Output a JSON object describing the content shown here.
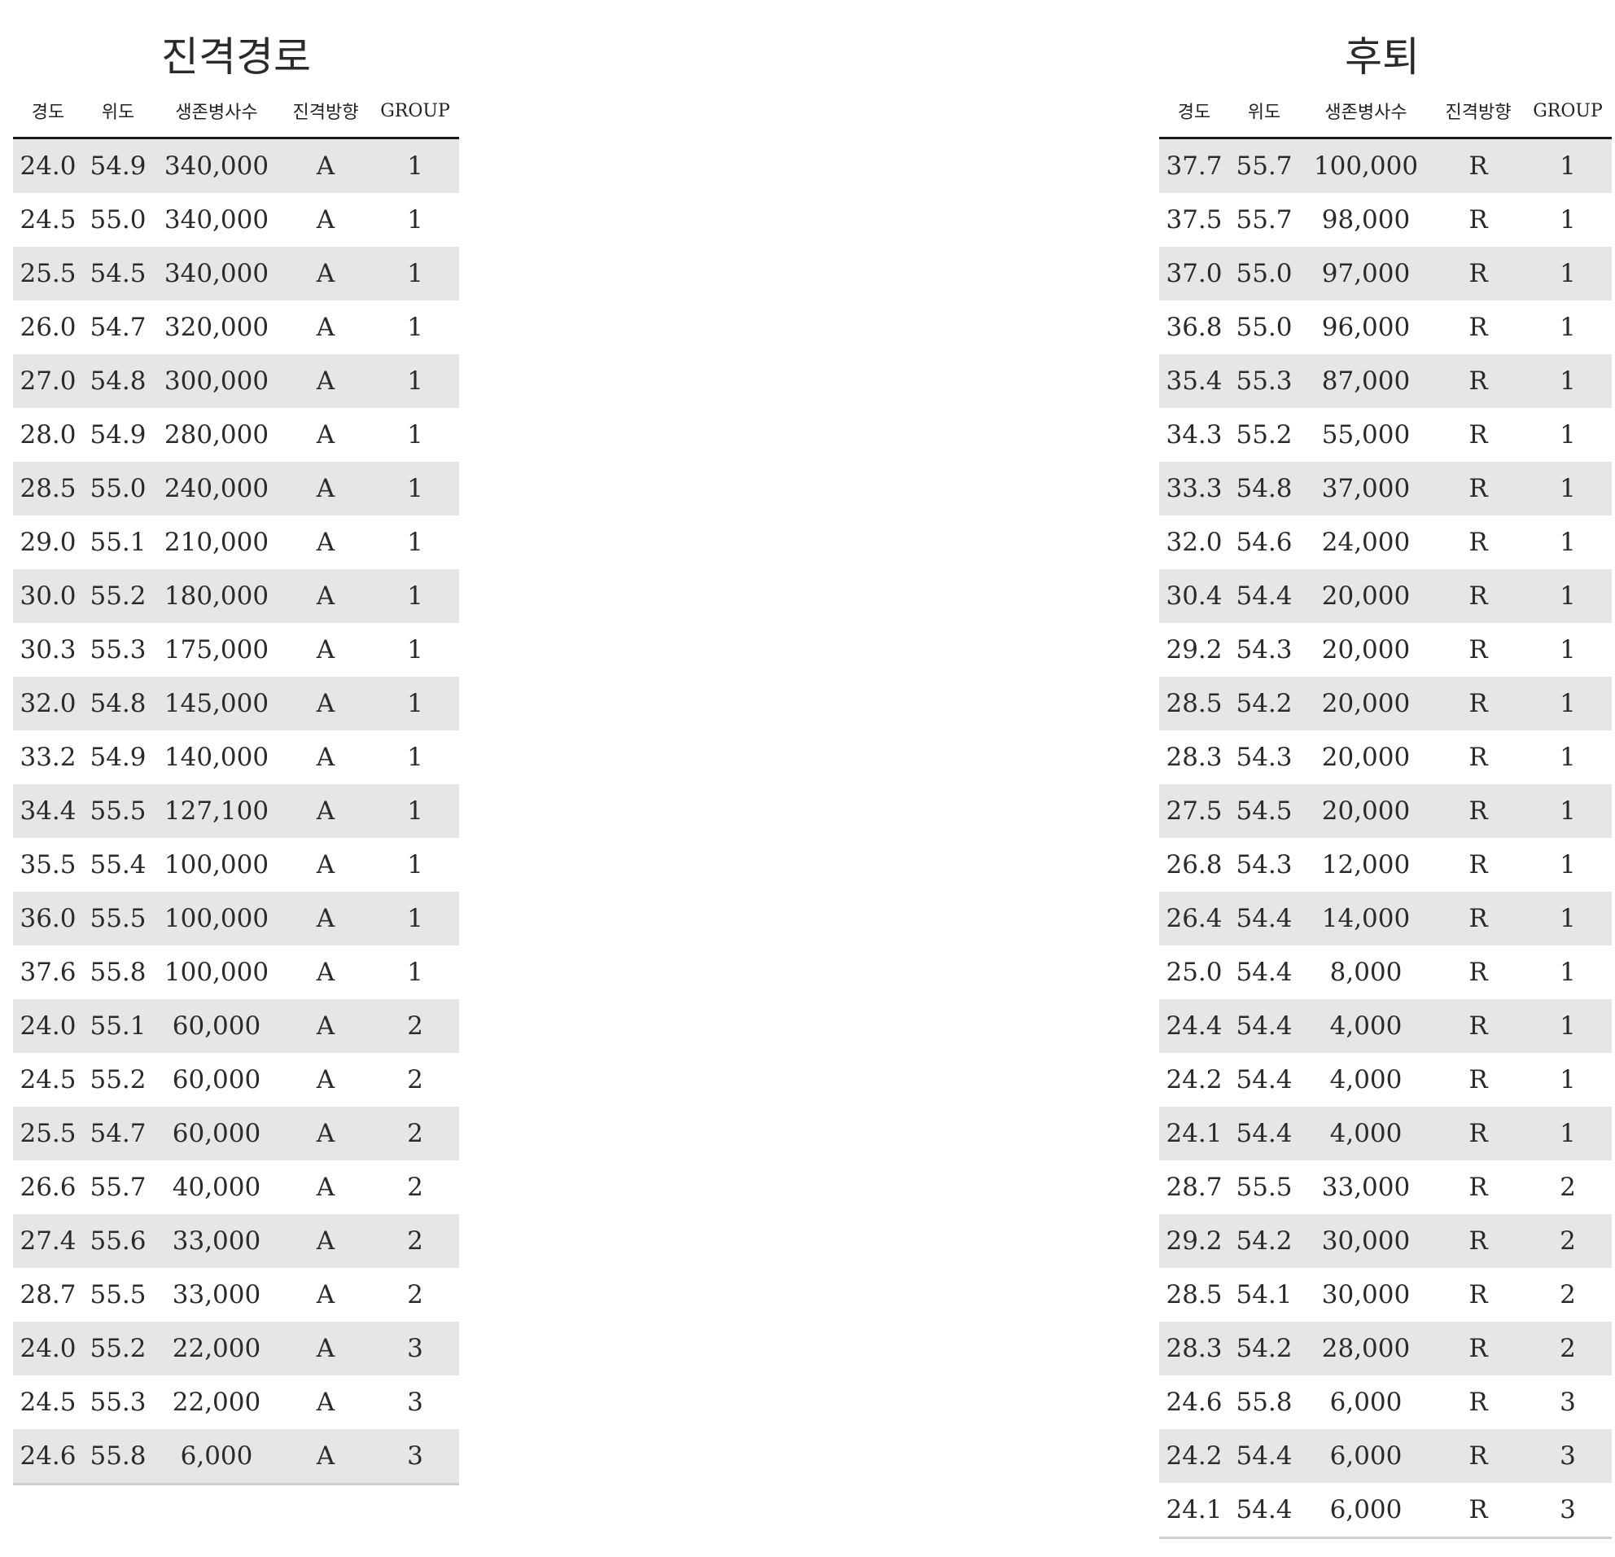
{
  "columns": [
    "경도",
    "위도",
    "생존병사수",
    "진격방향",
    "GROUP"
  ],
  "advance": {
    "title": "진격경로",
    "rows": [
      [
        "24.0",
        "54.9",
        "340,000",
        "A",
        "1"
      ],
      [
        "24.5",
        "55.0",
        "340,000",
        "A",
        "1"
      ],
      [
        "25.5",
        "54.5",
        "340,000",
        "A",
        "1"
      ],
      [
        "26.0",
        "54.7",
        "320,000",
        "A",
        "1"
      ],
      [
        "27.0",
        "54.8",
        "300,000",
        "A",
        "1"
      ],
      [
        "28.0",
        "54.9",
        "280,000",
        "A",
        "1"
      ],
      [
        "28.5",
        "55.0",
        "240,000",
        "A",
        "1"
      ],
      [
        "29.0",
        "55.1",
        "210,000",
        "A",
        "1"
      ],
      [
        "30.0",
        "55.2",
        "180,000",
        "A",
        "1"
      ],
      [
        "30.3",
        "55.3",
        "175,000",
        "A",
        "1"
      ],
      [
        "32.0",
        "54.8",
        "145,000",
        "A",
        "1"
      ],
      [
        "33.2",
        "54.9",
        "140,000",
        "A",
        "1"
      ],
      [
        "34.4",
        "55.5",
        "127,100",
        "A",
        "1"
      ],
      [
        "35.5",
        "55.4",
        "100,000",
        "A",
        "1"
      ],
      [
        "36.0",
        "55.5",
        "100,000",
        "A",
        "1"
      ],
      [
        "37.6",
        "55.8",
        "100,000",
        "A",
        "1"
      ],
      [
        "24.0",
        "55.1",
        "60,000",
        "A",
        "2"
      ],
      [
        "24.5",
        "55.2",
        "60,000",
        "A",
        "2"
      ],
      [
        "25.5",
        "54.7",
        "60,000",
        "A",
        "2"
      ],
      [
        "26.6",
        "55.7",
        "40,000",
        "A",
        "2"
      ],
      [
        "27.4",
        "55.6",
        "33,000",
        "A",
        "2"
      ],
      [
        "28.7",
        "55.5",
        "33,000",
        "A",
        "2"
      ],
      [
        "24.0",
        "55.2",
        "22,000",
        "A",
        "3"
      ],
      [
        "24.5",
        "55.3",
        "22,000",
        "A",
        "3"
      ],
      [
        "24.6",
        "55.8",
        "6,000",
        "A",
        "3"
      ]
    ]
  },
  "retreat": {
    "title": "후퇴",
    "rows": [
      [
        "37.7",
        "55.7",
        "100,000",
        "R",
        "1"
      ],
      [
        "37.5",
        "55.7",
        "98,000",
        "R",
        "1"
      ],
      [
        "37.0",
        "55.0",
        "97,000",
        "R",
        "1"
      ],
      [
        "36.8",
        "55.0",
        "96,000",
        "R",
        "1"
      ],
      [
        "35.4",
        "55.3",
        "87,000",
        "R",
        "1"
      ],
      [
        "34.3",
        "55.2",
        "55,000",
        "R",
        "1"
      ],
      [
        "33.3",
        "54.8",
        "37,000",
        "R",
        "1"
      ],
      [
        "32.0",
        "54.6",
        "24,000",
        "R",
        "1"
      ],
      [
        "30.4",
        "54.4",
        "20,000",
        "R",
        "1"
      ],
      [
        "29.2",
        "54.3",
        "20,000",
        "R",
        "1"
      ],
      [
        "28.5",
        "54.2",
        "20,000",
        "R",
        "1"
      ],
      [
        "28.3",
        "54.3",
        "20,000",
        "R",
        "1"
      ],
      [
        "27.5",
        "54.5",
        "20,000",
        "R",
        "1"
      ],
      [
        "26.8",
        "54.3",
        "12,000",
        "R",
        "1"
      ],
      [
        "26.4",
        "54.4",
        "14,000",
        "R",
        "1"
      ],
      [
        "25.0",
        "54.4",
        "8,000",
        "R",
        "1"
      ],
      [
        "24.4",
        "54.4",
        "4,000",
        "R",
        "1"
      ],
      [
        "24.2",
        "54.4",
        "4,000",
        "R",
        "1"
      ],
      [
        "24.1",
        "54.4",
        "4,000",
        "R",
        "1"
      ],
      [
        "28.7",
        "55.5",
        "33,000",
        "R",
        "2"
      ],
      [
        "29.2",
        "54.2",
        "30,000",
        "R",
        "2"
      ],
      [
        "28.5",
        "54.1",
        "30,000",
        "R",
        "2"
      ],
      [
        "28.3",
        "54.2",
        "28,000",
        "R",
        "2"
      ],
      [
        "24.6",
        "55.8",
        "6,000",
        "R",
        "3"
      ],
      [
        "24.2",
        "54.4",
        "6,000",
        "R",
        "3"
      ],
      [
        "24.1",
        "54.4",
        "6,000",
        "R",
        "3"
      ]
    ]
  }
}
